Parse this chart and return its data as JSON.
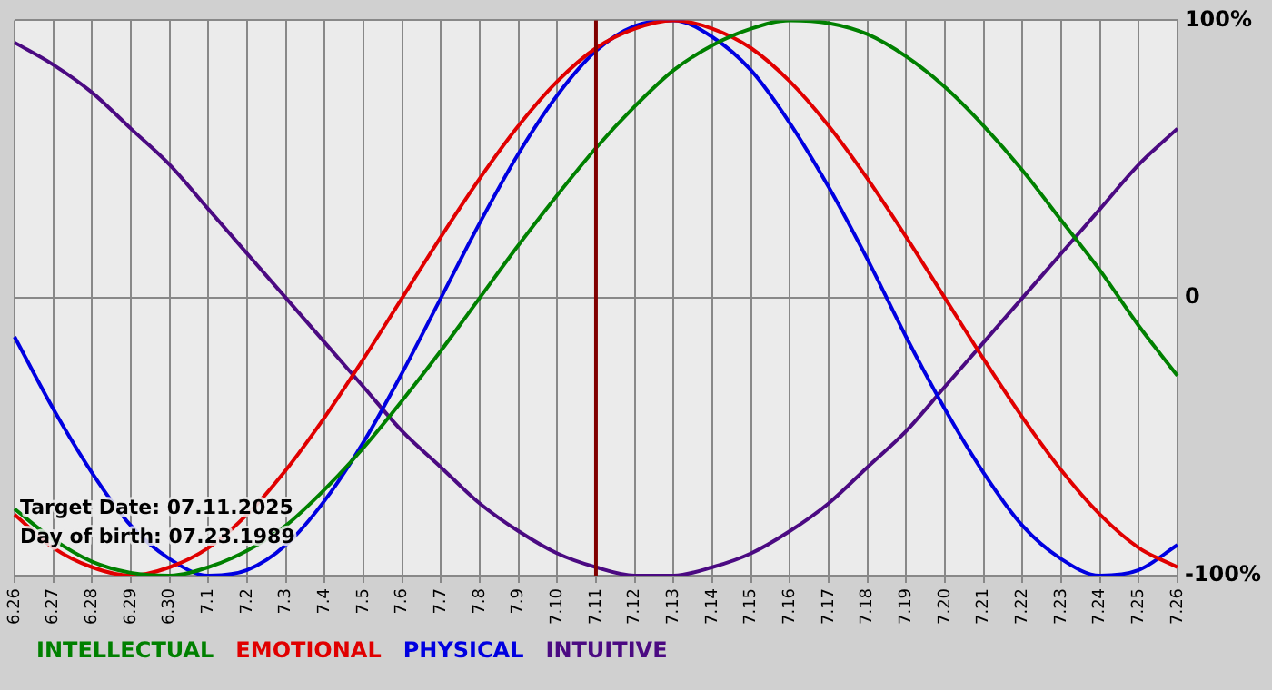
{
  "chart_data": {
    "type": "line",
    "categories": [
      "6.26",
      "6.27",
      "6.28",
      "6.29",
      "6.30",
      "7.1",
      "7.2",
      "7.3",
      "7.4",
      "7.5",
      "7.6",
      "7.7",
      "7.8",
      "7.9",
      "7.10",
      "7.11",
      "7.12",
      "7.13",
      "7.14",
      "7.15",
      "7.16",
      "7.17",
      "7.18",
      "7.19",
      "7.20",
      "7.21",
      "7.22",
      "7.23",
      "7.24",
      "7.25",
      "7.26"
    ],
    "series": [
      {
        "name": "INTELLECTUAL",
        "color": "#008000",
        "values": [
          -76,
          -87,
          -95,
          -99,
          -100,
          -97,
          -91,
          -82,
          -69,
          -54,
          -37,
          -19,
          0,
          19,
          37,
          54,
          69,
          82,
          91,
          97,
          100,
          99,
          95,
          87,
          76,
          62,
          46,
          28,
          10,
          -10,
          -28
        ]
      },
      {
        "name": "EMOTIONAL",
        "color": "#e00000",
        "values": [
          -78,
          -90,
          -97,
          -100,
          -97,
          -90,
          -78,
          -62,
          -43,
          -22,
          0,
          22,
          43,
          62,
          78,
          90,
          97,
          100,
          97,
          90,
          78,
          62,
          43,
          22,
          0,
          -22,
          -43,
          -62,
          -78,
          -90,
          -97
        ]
      },
      {
        "name": "PHYSICAL",
        "color": "#0000e0",
        "values": [
          -14,
          -40,
          -63,
          -82,
          -94,
          -100,
          -98,
          -89,
          -73,
          -52,
          -27,
          0,
          27,
          52,
          73,
          89,
          98,
          100,
          94,
          82,
          63,
          40,
          14,
          -14,
          -40,
          -63,
          -82,
          -94,
          -100,
          -98,
          -89
        ]
      },
      {
        "name": "INTUITIVE",
        "color": "#4b0a82",
        "values": [
          92,
          84,
          74,
          61,
          48,
          32,
          16,
          0,
          -16,
          -32,
          -48,
          -61,
          -74,
          -84,
          -92,
          -97,
          -100,
          -100,
          -97,
          -92,
          -84,
          -74,
          -61,
          -48,
          -32,
          -16,
          0,
          16,
          32,
          48,
          61
        ]
      }
    ],
    "ylim": [
      -100,
      100
    ],
    "yticks": [
      {
        "value": -100,
        "label": "-100%"
      },
      0,
      {
        "value": 100,
        "label": "100%"
      }
    ],
    "grid": true,
    "legend": "bottom left",
    "marker": "none",
    "line_style": "solid",
    "ref_lines": [
      {
        "axis": "x",
        "value": "7.11",
        "color": "#800000"
      }
    ],
    "annotations": [
      "Target Date: 07.11.2025",
      "Day of birth: 07.23.1989"
    ]
  }
}
